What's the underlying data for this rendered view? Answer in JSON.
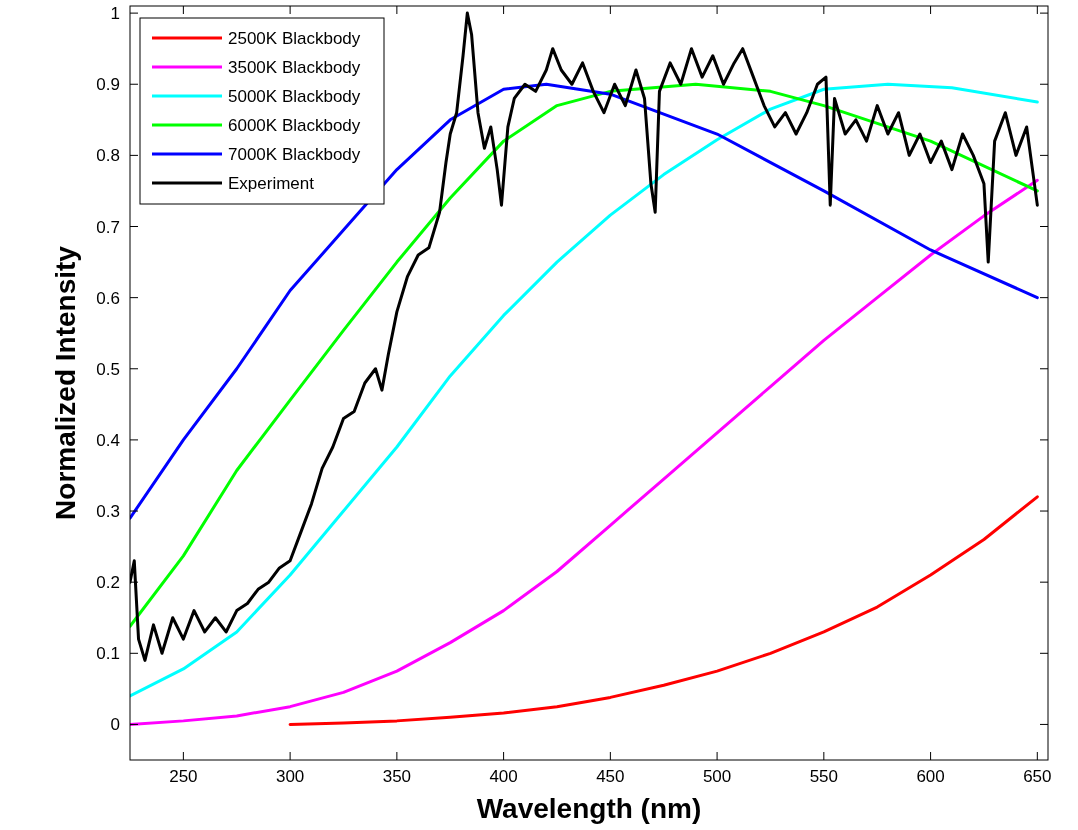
{
  "chart_data": {
    "type": "line",
    "xlabel": "Wavelength (nm)",
    "ylabel": "Normalized Intensity",
    "xlim": [
      225,
      655
    ],
    "ylim": [
      -0.05,
      1.01
    ],
    "xticks": [
      250,
      300,
      350,
      400,
      450,
      500,
      550,
      600,
      650
    ],
    "yticks": [
      0,
      0.1,
      0.2,
      0.3,
      0.4,
      0.5,
      0.6,
      0.7,
      0.8,
      0.9,
      1
    ],
    "grid": false,
    "legend": "top left",
    "line_style": "solid",
    "marker": "none",
    "series": [
      {
        "name": "2500K Blackbody",
        "color": "#ff0000",
        "x": [
          300,
          325,
          350,
          375,
          400,
          425,
          450,
          475,
          500,
          525,
          550,
          575,
          600,
          625,
          650
        ],
        "values": [
          0,
          0.002,
          0.005,
          0.01,
          0.016,
          0.025,
          0.038,
          0.055,
          0.075,
          0.1,
          0.13,
          0.165,
          0.21,
          0.26,
          0.32
        ]
      },
      {
        "name": "3500K Blackbody",
        "color": "#ff00ff",
        "x": [
          225,
          250,
          275,
          300,
          325,
          350,
          375,
          400,
          425,
          450,
          475,
          500,
          525,
          550,
          575,
          600,
          625,
          650
        ],
        "values": [
          0,
          0.005,
          0.012,
          0.025,
          0.045,
          0.075,
          0.115,
          0.16,
          0.215,
          0.28,
          0.345,
          0.41,
          0.475,
          0.54,
          0.6,
          0.66,
          0.715,
          0.765
        ]
      },
      {
        "name": "5000K Blackbody",
        "color": "#00ffff",
        "x": [
          225,
          250,
          275,
          300,
          325,
          350,
          375,
          400,
          425,
          450,
          475,
          500,
          525,
          550,
          580,
          610,
          650
        ],
        "values": [
          0.04,
          0.078,
          0.13,
          0.21,
          0.3,
          0.39,
          0.49,
          0.575,
          0.65,
          0.716,
          0.773,
          0.822,
          0.865,
          0.893,
          0.9,
          0.895,
          0.875
        ]
      },
      {
        "name": "6000K Blackbody",
        "color": "#00ff00",
        "x": [
          225,
          250,
          275,
          300,
          325,
          350,
          375,
          400,
          425,
          450,
          490,
          525,
          550,
          600,
          650
        ],
        "values": [
          0.138,
          0.237,
          0.357,
          0.456,
          0.554,
          0.65,
          0.74,
          0.82,
          0.87,
          0.89,
          0.9,
          0.89,
          0.87,
          0.82,
          0.75
        ]
      },
      {
        "name": "7000K Blackbody",
        "color": "#0000ff",
        "x": [
          225,
          250,
          275,
          300,
          325,
          350,
          375,
          400,
          420,
          450,
          500,
          550,
          600,
          650
        ],
        "values": [
          0.29,
          0.4,
          0.5,
          0.61,
          0.695,
          0.78,
          0.85,
          0.893,
          0.9,
          0.886,
          0.83,
          0.75,
          0.667,
          0.6
        ]
      },
      {
        "name": "Experiment",
        "color": "#000000",
        "x": [
          225,
          227,
          229,
          232,
          236,
          240,
          245,
          250,
          255,
          260,
          265,
          270,
          275,
          280,
          285,
          290,
          295,
          300,
          305,
          310,
          315,
          320,
          325,
          330,
          335,
          340,
          343,
          346,
          350,
          355,
          360,
          365,
          370,
          373,
          375,
          378,
          381,
          383,
          385,
          388,
          391,
          394,
          397,
          399,
          402,
          405,
          410,
          415,
          420,
          423,
          427,
          432,
          437,
          442,
          447,
          452,
          457,
          462,
          466,
          469,
          471,
          473,
          478,
          483,
          488,
          493,
          498,
          503,
          508,
          512,
          517,
          522,
          527,
          532,
          537,
          542,
          547,
          551,
          553,
          555,
          560,
          565,
          570,
          575,
          580,
          585,
          590,
          595,
          600,
          605,
          610,
          615,
          620,
          625,
          627,
          630,
          635,
          640,
          645,
          650
        ],
        "values": [
          0.2,
          0.23,
          0.12,
          0.09,
          0.14,
          0.1,
          0.15,
          0.12,
          0.16,
          0.13,
          0.15,
          0.13,
          0.16,
          0.17,
          0.19,
          0.2,
          0.22,
          0.23,
          0.27,
          0.31,
          0.36,
          0.39,
          0.43,
          0.44,
          0.48,
          0.5,
          0.47,
          0.52,
          0.58,
          0.63,
          0.66,
          0.67,
          0.72,
          0.79,
          0.83,
          0.86,
          0.94,
          1.0,
          0.97,
          0.86,
          0.81,
          0.84,
          0.78,
          0.73,
          0.84,
          0.88,
          0.9,
          0.89,
          0.92,
          0.95,
          0.92,
          0.9,
          0.93,
          0.89,
          0.86,
          0.9,
          0.87,
          0.92,
          0.88,
          0.76,
          0.72,
          0.89,
          0.93,
          0.9,
          0.95,
          0.91,
          0.94,
          0.9,
          0.93,
          0.95,
          0.91,
          0.87,
          0.84,
          0.86,
          0.83,
          0.86,
          0.9,
          0.91,
          0.73,
          0.88,
          0.83,
          0.85,
          0.82,
          0.87,
          0.83,
          0.86,
          0.8,
          0.83,
          0.79,
          0.82,
          0.78,
          0.83,
          0.8,
          0.76,
          0.65,
          0.82,
          0.86,
          0.8,
          0.84,
          0.73
        ]
      }
    ]
  }
}
